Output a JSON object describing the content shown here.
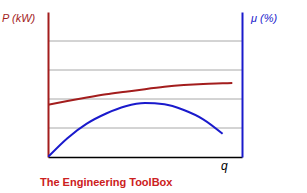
{
  "chart_data": {
    "type": "line",
    "y_label": "P (kW)",
    "y2_label": "μ (%)",
    "x_label": "q",
    "annotation": "The Engineering ToolBox",
    "x": [
      0,
      1,
      2,
      3,
      4,
      5,
      6,
      7,
      8,
      9,
      9.5
    ],
    "xlim": [
      0,
      10
    ],
    "xticks": [],
    "ylim": [
      0,
      5
    ],
    "yticks": [
      1,
      2,
      3,
      4
    ],
    "y2lim": [
      0,
      5
    ],
    "y2ticks": [
      1,
      2,
      3,
      4
    ],
    "grid": true,
    "tick_labels": false,
    "series": [
      {
        "color": "#a31d1d",
        "axis": "y",
        "values": [
          1.8,
          1.93,
          2.05,
          2.16,
          2.25,
          2.34,
          2.42,
          2.48,
          2.52,
          2.54,
          2.55
        ]
      },
      {
        "color": "#1a1acc",
        "axis": "y2",
        "values": [
          0,
          0.65,
          1.15,
          1.5,
          1.75,
          1.86,
          1.82,
          1.62,
          1.3,
          0.8,
          null
        ]
      }
    ]
  }
}
